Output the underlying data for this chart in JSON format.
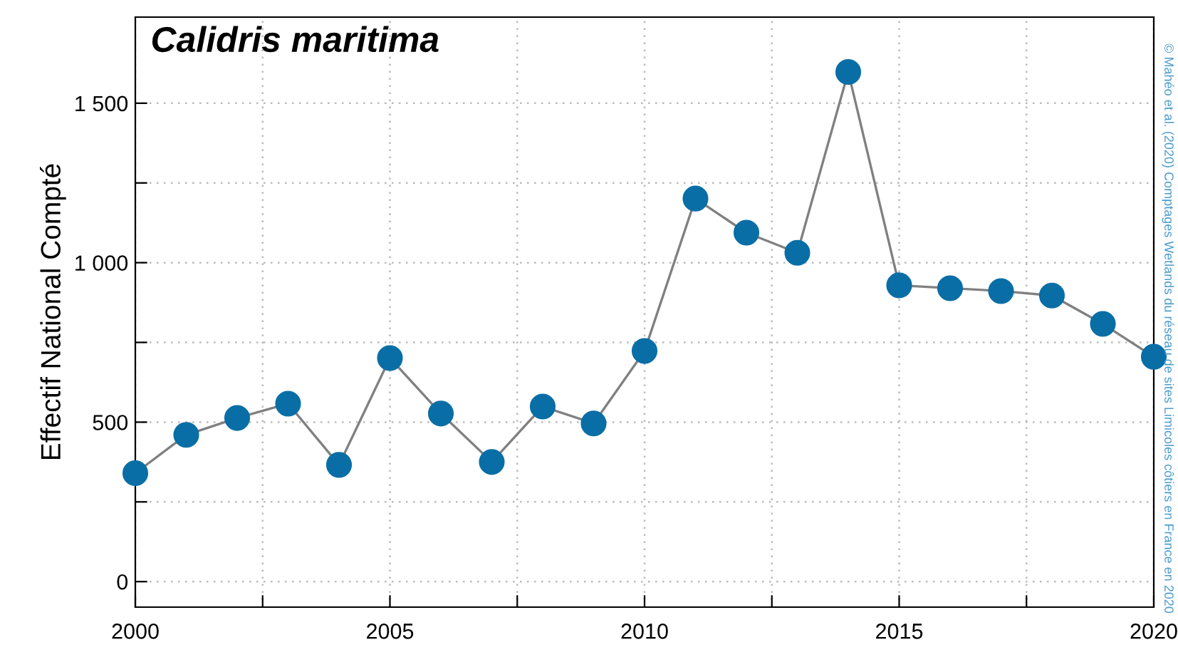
{
  "chart_data": {
    "type": "line",
    "title": "Calidris maritima",
    "ylabel": "Effectif National Compté",
    "annotations": [
      "© Mahéo et al. (2020) Comptages Wetlands du réseau de sites Limicoles côtiers en France en 2020"
    ],
    "x": [
      2000,
      2001,
      2002,
      2003,
      2004,
      2005,
      2006,
      2007,
      2008,
      2009,
      2010,
      2011,
      2012,
      2013,
      2014,
      2015,
      2016,
      2017,
      2018,
      2019,
      2020
    ],
    "series": [
      {
        "color": "#0a6ea6",
        "values": [
          340,
          460,
          513,
          558,
          366,
          701,
          527,
          375,
          549,
          496,
          723,
          1201,
          1094,
          1031,
          1598,
          929,
          920,
          911,
          897,
          808,
          705
        ]
      }
    ],
    "xlim": [
      2000,
      2020
    ],
    "ylim": [
      -80,
      1770
    ],
    "xticks": [
      2000,
      {
        "value": 2002.5,
        "label": null
      },
      2005,
      {
        "value": 2007.5,
        "label": null
      },
      2010,
      {
        "value": 2012.5,
        "label": null
      },
      2015,
      {
        "value": 2017.5,
        "label": null
      },
      2020
    ],
    "yticks": [
      {
        "value": 0,
        "label": "0"
      },
      {
        "value": 250,
        "label": null
      },
      {
        "value": 500,
        "label": "500"
      },
      {
        "value": 750,
        "label": null
      },
      {
        "value": 1000,
        "label": "1 000"
      },
      {
        "value": 1250,
        "label": null
      },
      {
        "value": 1500,
        "label": "1 500"
      }
    ],
    "grid": true,
    "marker": "circle",
    "line_style": "solid"
  }
}
